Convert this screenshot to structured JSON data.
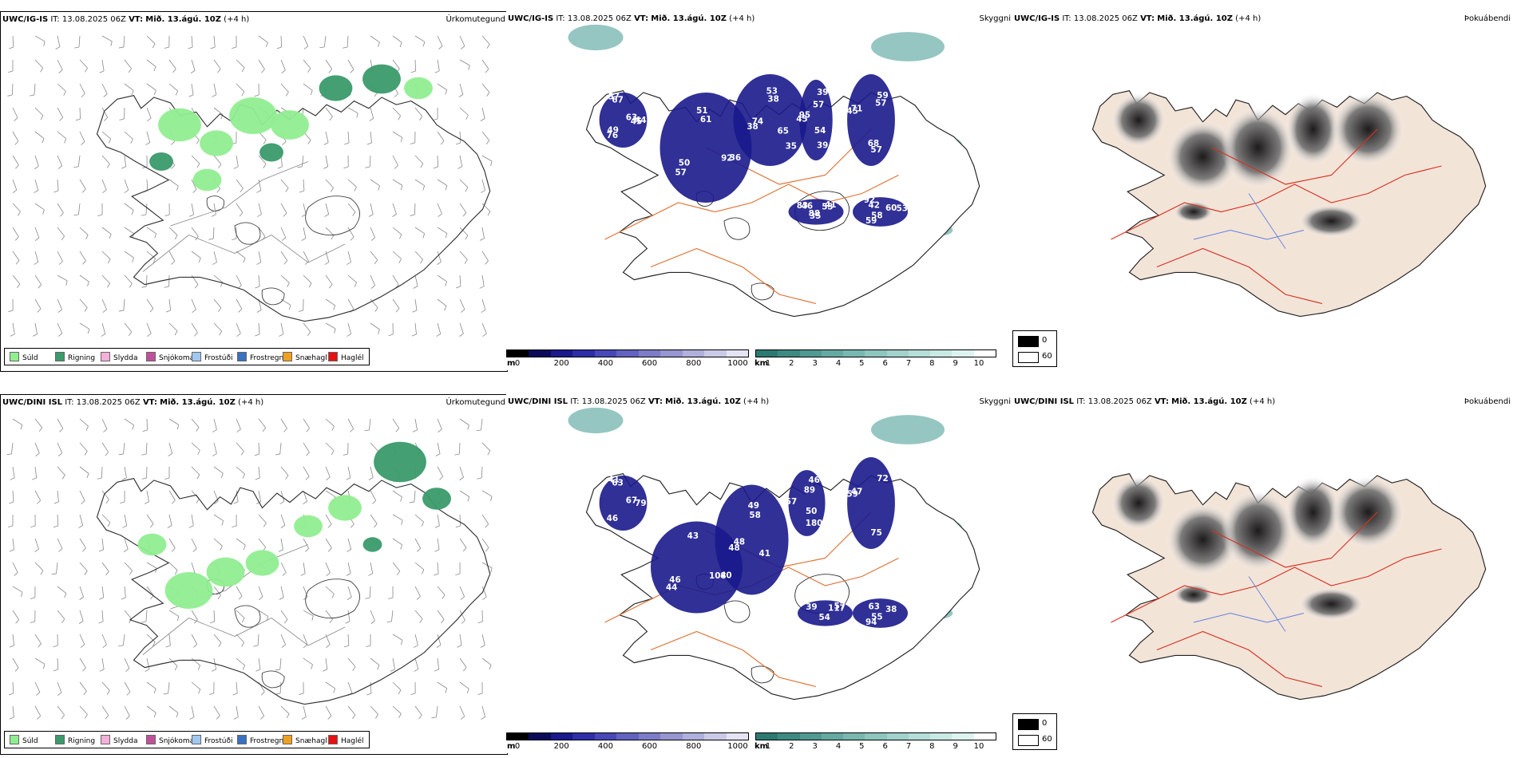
{
  "rows": [
    {
      "model": "UWC/IG-IS",
      "run_label": "IT:",
      "run_time": "13.08.2025 06Z",
      "valid_label": "VT:",
      "valid_time": "Mið. 13.ágú. 10Z",
      "lead": "(+4 h)",
      "clouds": [
        "63",
        "57",
        "53",
        "54",
        "45",
        "41",
        "58",
        "57",
        "36",
        "38",
        "57",
        "57",
        "83",
        "60",
        "76",
        "51",
        "65",
        "45",
        "59",
        "35",
        "42",
        "44",
        "50",
        "38",
        "39",
        "71",
        "53",
        "59",
        "67",
        "92",
        "74",
        "39",
        "68",
        "46",
        "53",
        "49",
        "61",
        "35",
        "95",
        "57",
        "88",
        "92",
        "45"
      ]
    },
    {
      "model": "UWC/DINI ISL",
      "run_label": "IT:",
      "run_time": "13.08.2025 06Z",
      "valid_label": "VT:",
      "valid_time": "Mið. 13.ágú. 10Z",
      "lead": "(+4 h)",
      "clouds": [
        "67",
        "44",
        "49",
        "50",
        "59",
        "57",
        "55",
        "41",
        "40",
        "48",
        "89",
        "75",
        "39",
        "38",
        "46",
        "43",
        "41",
        "57",
        "72",
        "54",
        "63",
        "79",
        "46",
        "58",
        "180",
        "47",
        "117",
        "94",
        "63",
        "108",
        "48",
        "46"
      ]
    }
  ],
  "panels": {
    "precip_title": "Úrkomutegund",
    "cloud_title": "Skyggni",
    "dew_title": "Þokuábendi"
  },
  "precip_legend": [
    {
      "label": "Súld",
      "color": "#90ee90"
    },
    {
      "label": "Rigning",
      "color": "#3a9a6a"
    },
    {
      "label": "Slydda",
      "color": "#f4b0d8"
    },
    {
      "label": "Snjókoma",
      "color": "#c0509a"
    },
    {
      "label": "Frostúði",
      "color": "#a0c8f0"
    },
    {
      "label": "Frostregn",
      "color": "#3a70c0"
    },
    {
      "label": "Snæhagl",
      "color": "#f0a020"
    },
    {
      "label": "Haglél",
      "color": "#e81010"
    }
  ],
  "ceiling_bar": {
    "unit": "m",
    "ticks": [
      "0",
      "200",
      "400",
      "600",
      "800",
      "1000"
    ],
    "colors": [
      "#000000",
      "#0b0b5a",
      "#1a1a8c",
      "#2e2ea8",
      "#4848b8",
      "#6262c0",
      "#7c7cc8",
      "#9696d0",
      "#b0b0dc",
      "#cacae8",
      "#e4e4f4"
    ]
  },
  "visibility_bar": {
    "unit": "km",
    "ticks": [
      "1",
      "2",
      "3",
      "4",
      "5",
      "6",
      "7",
      "8",
      "9",
      "10"
    ],
    "colors": [
      "#2a7a72",
      "#3d8a82",
      "#519a92",
      "#65aaa2",
      "#79b8b0",
      "#8dc6be",
      "#a1d2cb",
      "#b5ded8",
      "#c9e9e4",
      "#ddf3f0",
      "#ffffff"
    ]
  },
  "dew_legend": {
    "low": "0",
    "high": "60",
    "low_color": "#000000",
    "high_color": "#ffffff"
  },
  "colors": {
    "land_fill": "#f3e4d8",
    "road": "#e07030",
    "road_red": "#d83020",
    "river": "#6080e0",
    "cloud_blue": "#1a1a8c",
    "fog_teal": "#4fa09a",
    "drizzle": "#90ee90",
    "rain": "#3a9a6a"
  }
}
